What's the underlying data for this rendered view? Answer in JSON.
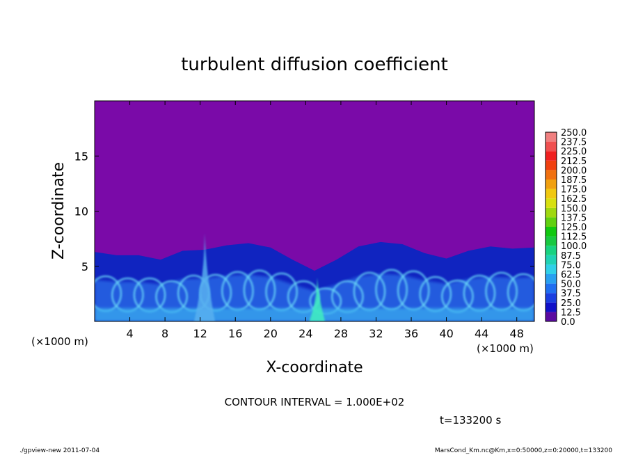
{
  "chart_data": {
    "type": "heatmap",
    "title": "turbulent diffusion coefficient",
    "xlabel": "X-coordinate",
    "ylabel": "Z-coordinate",
    "x_unit": "(×1000 m)",
    "z_unit": "(×1000 m)",
    "xlim": [
      0,
      50
    ],
    "ylim": [
      0,
      20
    ],
    "x_ticks": [
      4,
      8,
      12,
      16,
      20,
      24,
      28,
      32,
      36,
      40,
      44,
      48
    ],
    "y_ticks": [
      5,
      10,
      15
    ],
    "contour_interval": "CONTOUR INTERVAL = 1.000E+02",
    "time_label": "t=133200 s",
    "background_value_color": "#7a0aa8",
    "colorbar": {
      "levels": [
        "0.0",
        "12.5",
        "25.0",
        "37.5",
        "50.0",
        "62.5",
        "75.0",
        "87.5",
        "100.0",
        "112.5",
        "125.0",
        "137.5",
        "150.0",
        "162.5",
        "175.0",
        "187.5",
        "200.0",
        "212.5",
        "225.0",
        "237.5",
        "250.0"
      ],
      "colors": [
        "#5a0aa0",
        "#1010c8",
        "#1a3ee0",
        "#1f6ef0",
        "#28a0f0",
        "#30d0e8",
        "#20d2b4",
        "#18d280",
        "#18c840",
        "#10c810",
        "#60d010",
        "#a0d810",
        "#d8e010",
        "#f0c810",
        "#f0a010",
        "#f07010",
        "#f04010",
        "#f02020",
        "#f05050",
        "#f08080"
      ]
    },
    "turbulent_layer_top_km": [
      6.3,
      6.0,
      6.0,
      5.6,
      6.4,
      6.5,
      6.9,
      7.1,
      6.7,
      5.6,
      4.6,
      5.6,
      6.8,
      7.2,
      7.0,
      6.2,
      5.7,
      6.4,
      6.8,
      6.6,
      6.7
    ],
    "high_value_plumes_x_km": [
      12.5,
      25.3
    ]
  },
  "footer": {
    "left": "./gpview-new   2011-07-04",
    "right": "MarsCond_Km.nc@Km,x=0:50000,z=0:20000,t=133200"
  }
}
